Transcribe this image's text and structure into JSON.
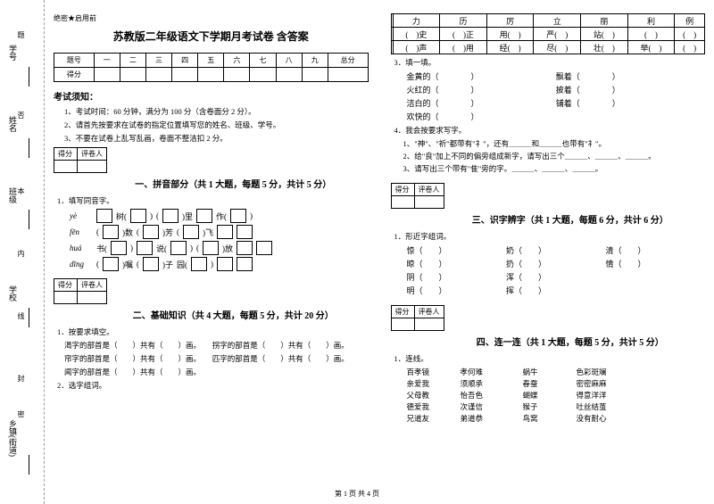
{
  "side": {
    "labels": [
      "学号",
      "姓名",
      "班级",
      "学校",
      "乡镇(街道)"
    ],
    "marks": [
      "题",
      "否",
      "本",
      "内",
      "线",
      "封",
      "密"
    ]
  },
  "secret": "绝密★启用前",
  "title": "苏教版二年级语文下学期月考试卷 含答案",
  "score_head": [
    "题号",
    "一",
    "二",
    "三",
    "四",
    "五",
    "六",
    "七",
    "八",
    "九",
    "总分"
  ],
  "score_row": "得分",
  "notice_head": "考试须知：",
  "notices": [
    "1、考试时间：60 分钟，满分为 100 分（含卷面分 2 分）。",
    "2、请首先按要求在试卷的指定位置填写您的姓名、班级、学号。",
    "3、不要在试卷上乱写乱画，卷面不整洁扣 2 分。"
  ],
  "minibox": [
    "得分",
    "评卷人"
  ],
  "sect1": "一、拼音部分（共 1 大题，每题 5 分，共计 5 分）",
  "q1": "1．填写同音字。",
  "pinyin_rows": [
    {
      "py": "yè",
      "cells": [
        "",
        "树(",
        "",
        ")",
        "(",
        "",
        ")里",
        "",
        "作(",
        "",
        ")"
      ]
    },
    {
      "py": "fēn",
      "cells": [
        "(",
        "",
        ")数",
        "(",
        "",
        ")芳",
        "(",
        "",
        ")飞",
        "",
        ""
      ]
    },
    {
      "py": "huá",
      "cells": [
        "书(",
        "",
        ")",
        "",
        "说(",
        "",
        ")",
        "(",
        "",
        ")放",
        "",
        ""
      ]
    },
    {
      "py": "dīng",
      "cells": [
        "(",
        "",
        ")嘱",
        "(",
        "",
        ")子",
        "园(",
        "",
        ")",
        "",
        ""
      ]
    }
  ],
  "sect2": "二、基础知识（共 4 大题，每题 5 分，共计 20 分）",
  "q2_1": "1．按要求填空。",
  "q2_items": [
    "渴字的部首是（　　）共有（　　）画。　　拐字的部首是（　　）共有（　　）画。",
    "帘字的部首是（　　）共有（　　）画。　　匹字的部首是（　　）共有（　　）画。",
    "闻字的部首是（　　）共有（　　）画。"
  ],
  "q2_2": "2．选字组词。",
  "char_head": [
    "",
    "力",
    "历",
    "厉",
    "立",
    "丽",
    "利",
    "例"
  ],
  "char_rows": [
    [
      "(　)史",
      "(　)正",
      "用(　)",
      "严(　)",
      "站(　)",
      "(　)",
      "(　)"
    ],
    [
      "(　)声",
      "(　)用",
      "经(　)",
      "尽(　)",
      "壮(　)",
      "举(　)",
      "(　)"
    ]
  ],
  "q3": "3．填一填。",
  "q3_items": [
    {
      "l": "金黄的（　　　　）",
      "r": "飘着（　　　　）"
    },
    {
      "l": "火红的（　　　　）",
      "r": "披着（　　　　）"
    },
    {
      "l": "洁白的（　　　　）",
      "r": "铺着（　　　　）"
    },
    {
      "l": "欢快的（　　　　）",
      "r": ""
    }
  ],
  "q4": "4．我会按要求写字。",
  "q4_items": [
    "1、\"神\"、\"祈\"都带有\"礻\"，还有＿＿＿和＿＿＿也带有\"礻\"。",
    "2、给\"良\"加上不同的偏旁组成新字，请写出三个＿＿＿、＿＿＿、＿＿＿。",
    "3、请写出三个带有\"隹\"旁的字。＿＿＿、＿＿＿、＿＿＿。"
  ],
  "sect3": "三、识字辨字（共 1 大题，每题 6 分，共计 6 分）",
  "q3_1": "1．形近字组词。",
  "pairs": [
    [
      "惊（　　）",
      "奶（　　）",
      "清（　　）"
    ],
    [
      "晾（　　）",
      "扔（　　）",
      "情（　　）"
    ],
    [
      "阴（　　）",
      "浑（　　）",
      ""
    ],
    [
      "明（　　）",
      "挥（　　）",
      ""
    ]
  ],
  "sect4": "四、连一连（共 1 大题，每题 5 分，共计 5 分）",
  "q4_1": "1．连线。",
  "lian": [
    [
      "百孝镜",
      "孝何难",
      "蜗牛",
      "色彩斑斓"
    ],
    [
      "亲爱我",
      "须顺承",
      "春蚕",
      "密密麻麻"
    ],
    [
      "父母教",
      "怡吾色",
      "蝴蝶",
      "得意洋洋"
    ],
    [
      "德爱我",
      "次谨信",
      "猴子",
      "吐丝结茧"
    ],
    [
      "兄道友",
      "弟道恭",
      "鸟窝",
      "没有耐心"
    ]
  ],
  "footer": "第 1 页 共 4 页"
}
